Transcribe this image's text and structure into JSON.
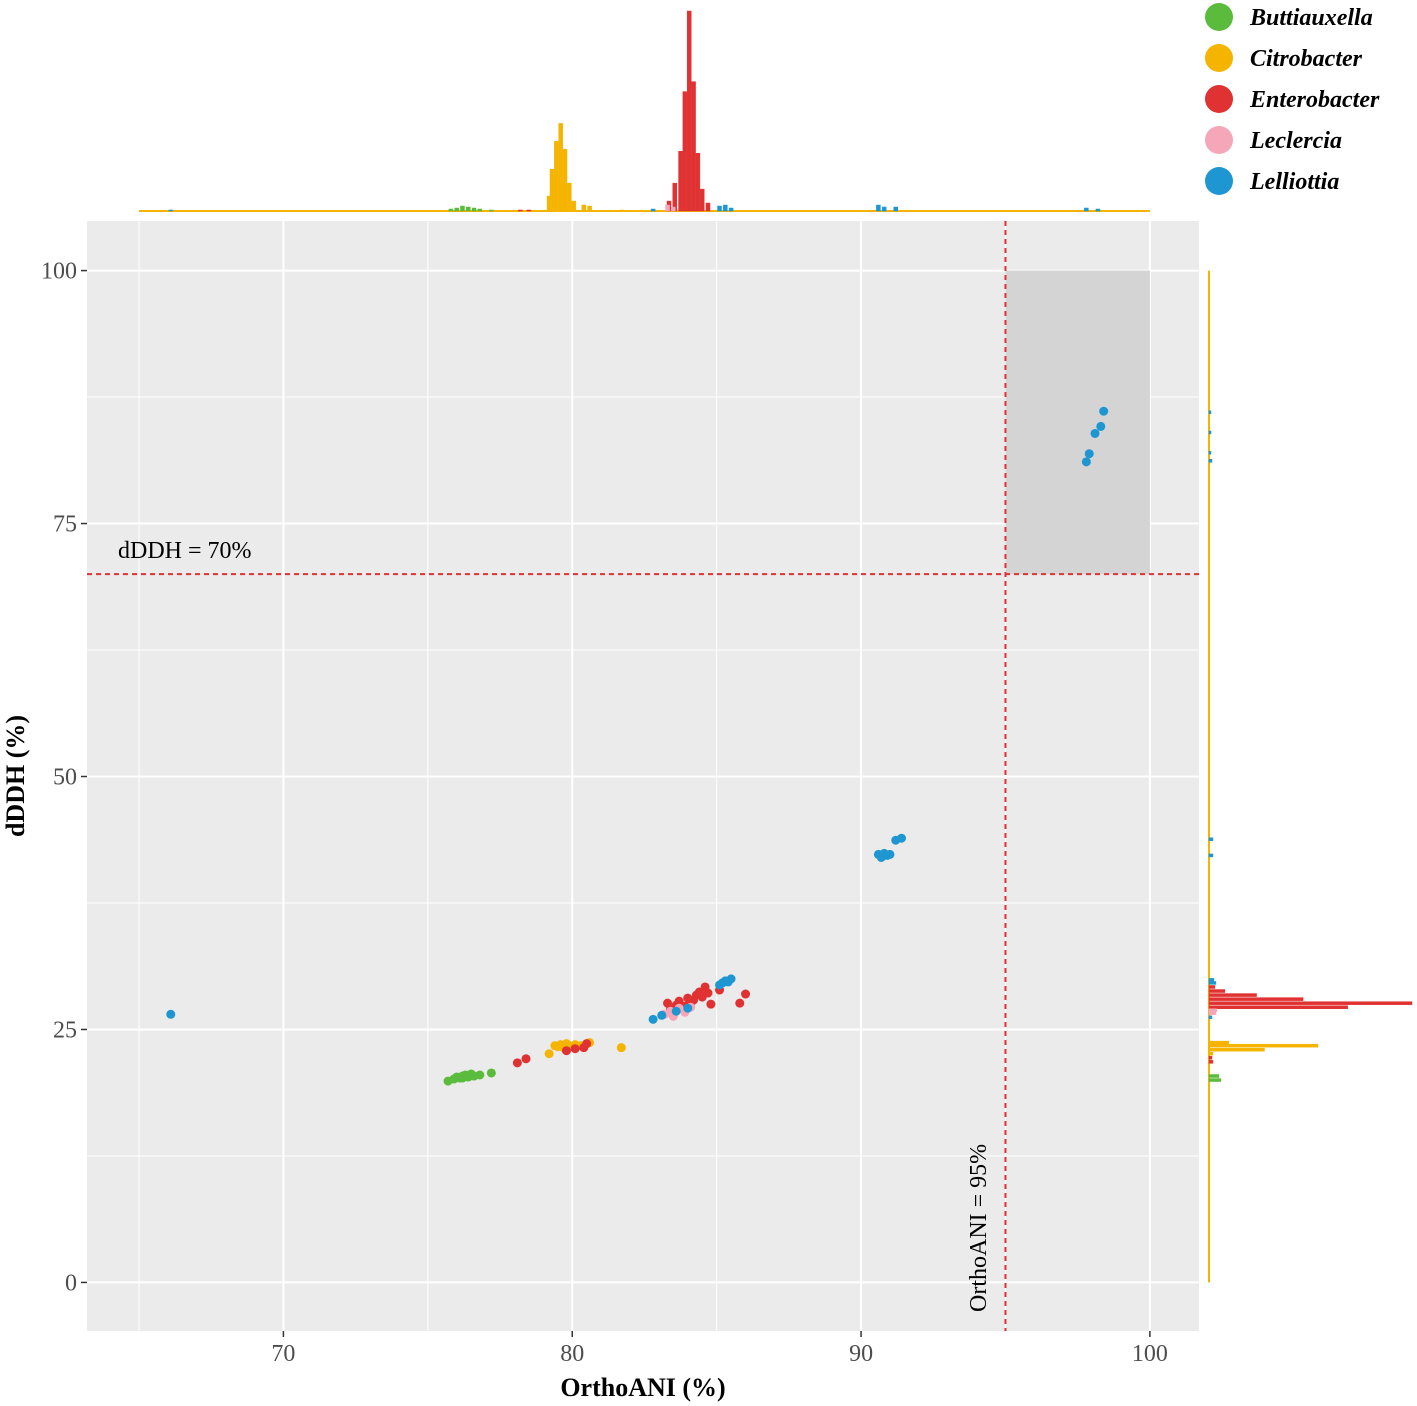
{
  "chart_data": {
    "type": "scatter",
    "xlabel": "OrthoANI (%)",
    "ylabel": "dDDH (%)",
    "xlim": [
      63.2,
      101.7
    ],
    "ylim": [
      -4.8,
      104.9
    ],
    "x_ticks": [
      70,
      80,
      90,
      100
    ],
    "x_minor": [
      65,
      75,
      85,
      95
    ],
    "y_ticks": [
      0,
      25,
      50,
      75,
      100
    ],
    "y_minor": [
      12.5,
      37.5,
      62.5,
      87.5
    ],
    "grid": true,
    "legend_position": "top-right",
    "colors": {
      "Buttiauxella": "#5bbb3c",
      "Citrobacter": "#f5b400",
      "Enterobacter": "#e03232",
      "Leclercia": "#f5a6b8",
      "Lelliottia": "#1e96d2",
      "panel": "#ebebeb",
      "grid": "#ffffff",
      "threshold": "#e03232",
      "region": "#d4d4d4"
    },
    "thresholds": {
      "ddh": {
        "value": 70,
        "label": "dDDH = 70%"
      },
      "ani": {
        "value": 95,
        "label": "OrthoANI = 95%"
      }
    },
    "highlight_region": {
      "x": [
        95,
        100
      ],
      "y": [
        70,
        100
      ]
    },
    "legend": [
      "Buttiauxella",
      "Citrobacter",
      "Enterobacter",
      "Leclercia",
      "Lelliottia"
    ],
    "series": [
      {
        "name": "Buttiauxella",
        "points": [
          [
            75.7,
            19.9
          ],
          [
            75.9,
            20.1
          ],
          [
            76.0,
            20.3
          ],
          [
            76.1,
            20.2
          ],
          [
            76.2,
            20.4
          ],
          [
            76.3,
            20.5
          ],
          [
            76.4,
            20.3
          ],
          [
            76.5,
            20.6
          ],
          [
            76.6,
            20.4
          ],
          [
            76.2,
            20.2
          ],
          [
            76.8,
            20.5
          ],
          [
            77.2,
            20.7
          ]
        ]
      },
      {
        "name": "Citrobacter",
        "points": [
          [
            79.2,
            22.6
          ],
          [
            79.4,
            23.4
          ],
          [
            79.5,
            23.3
          ],
          [
            79.6,
            23.5
          ],
          [
            79.7,
            23.2
          ],
          [
            79.8,
            23.6
          ],
          [
            79.9,
            23.4
          ],
          [
            80.0,
            23.3
          ],
          [
            80.1,
            23.5
          ],
          [
            80.3,
            23.4
          ],
          [
            80.5,
            23.6
          ],
          [
            80.6,
            23.7
          ],
          [
            81.7,
            23.2
          ]
        ]
      },
      {
        "name": "Enterobacter",
        "points": [
          [
            78.1,
            21.7
          ],
          [
            78.4,
            22.1
          ],
          [
            79.8,
            22.9
          ],
          [
            80.1,
            23.1
          ],
          [
            80.4,
            23.2
          ],
          [
            80.5,
            23.6
          ],
          [
            83.3,
            27.6
          ],
          [
            83.4,
            27.0
          ],
          [
            83.6,
            27.4
          ],
          [
            83.7,
            27.8
          ],
          [
            83.9,
            27.3
          ],
          [
            84.0,
            28.1
          ],
          [
            84.1,
            27.6
          ],
          [
            84.2,
            27.9
          ],
          [
            84.3,
            28.4
          ],
          [
            84.4,
            28.7
          ],
          [
            84.5,
            28.2
          ],
          [
            84.6,
            29.2
          ],
          [
            84.7,
            28.6
          ],
          [
            84.8,
            27.5
          ],
          [
            85.1,
            28.9
          ],
          [
            85.8,
            27.6
          ],
          [
            86.0,
            28.5
          ]
        ]
      },
      {
        "name": "Leclercia",
        "points": [
          [
            83.2,
            26.5
          ],
          [
            83.4,
            26.8
          ],
          [
            83.5,
            26.3
          ],
          [
            83.7,
            27.1
          ],
          [
            83.9,
            26.7
          ],
          [
            84.1,
            27.2
          ]
        ]
      },
      {
        "name": "Lelliottia",
        "points": [
          [
            66.1,
            26.5
          ],
          [
            82.8,
            26.0
          ],
          [
            83.1,
            26.4
          ],
          [
            83.6,
            26.8
          ],
          [
            84.0,
            27.1
          ],
          [
            85.1,
            29.4
          ],
          [
            85.2,
            29.6
          ],
          [
            85.3,
            29.8
          ],
          [
            85.4,
            29.7
          ],
          [
            85.5,
            30.0
          ],
          [
            90.6,
            42.3
          ],
          [
            90.7,
            42.0
          ],
          [
            90.8,
            42.4
          ],
          [
            90.9,
            42.2
          ],
          [
            91.0,
            42.3
          ],
          [
            91.2,
            43.7
          ],
          [
            91.4,
            43.9
          ],
          [
            97.8,
            81.1
          ],
          [
            97.9,
            81.9
          ],
          [
            98.1,
            83.9
          ],
          [
            98.3,
            84.6
          ],
          [
            98.4,
            86.1
          ]
        ]
      }
    ],
    "top_marginal": {
      "Buttiauxella": [
        [
          75.8,
          2
        ],
        [
          76.0,
          3
        ],
        [
          76.2,
          5
        ],
        [
          76.4,
          4
        ],
        [
          76.6,
          3
        ],
        [
          76.8,
          2
        ],
        [
          77.2,
          1
        ]
      ],
      "Citrobacter": [
        [
          79.2,
          15
        ],
        [
          79.3,
          42
        ],
        [
          79.45,
          70
        ],
        [
          79.6,
          88
        ],
        [
          79.75,
          62
        ],
        [
          79.9,
          28
        ],
        [
          80.05,
          10
        ],
        [
          80.4,
          6
        ],
        [
          80.6,
          5
        ],
        [
          81.7,
          1
        ]
      ],
      "Enterobacter": [
        [
          78.2,
          1
        ],
        [
          78.5,
          1
        ],
        [
          83.35,
          10
        ],
        [
          83.55,
          28
        ],
        [
          83.75,
          60
        ],
        [
          83.9,
          120
        ],
        [
          84.05,
          201
        ],
        [
          84.2,
          130
        ],
        [
          84.35,
          58
        ],
        [
          84.5,
          22
        ],
        [
          84.7,
          8
        ]
      ],
      "Leclercia": [
        [
          83.3,
          6
        ],
        [
          83.5,
          4
        ]
      ],
      "Lelliottia": [
        [
          66.1,
          1
        ],
        [
          82.8,
          2
        ],
        [
          85.1,
          5
        ],
        [
          85.3,
          6
        ],
        [
          85.5,
          3
        ],
        [
          90.6,
          6
        ],
        [
          90.8,
          4
        ],
        [
          91.2,
          4
        ],
        [
          97.8,
          3
        ],
        [
          98.2,
          2
        ]
      ]
    },
    "right_marginal": {
      "Buttiauxella": [
        [
          20.0,
          12
        ],
        [
          20.4,
          10
        ]
      ],
      "Citrobacter": [
        [
          22.6,
          4
        ],
        [
          23.0,
          56
        ],
        [
          23.4,
          110
        ],
        [
          23.7,
          20
        ]
      ],
      "Enterobacter": [
        [
          21.8,
          4
        ],
        [
          22.2,
          3
        ],
        [
          27.2,
          140
        ],
        [
          27.6,
          205
        ],
        [
          28.0,
          95
        ],
        [
          28.4,
          48
        ],
        [
          28.8,
          16
        ],
        [
          29.2,
          6
        ]
      ],
      "Leclercia": [
        [
          26.6,
          7
        ],
        [
          26.9,
          8
        ]
      ],
      "Lelliottia": [
        [
          26.2,
          3
        ],
        [
          29.6,
          7
        ],
        [
          29.9,
          5
        ],
        [
          42.2,
          4
        ],
        [
          43.8,
          4
        ],
        [
          81.2,
          3
        ],
        [
          82.0,
          2
        ],
        [
          84.0,
          2
        ],
        [
          86.0,
          2
        ]
      ]
    }
  }
}
